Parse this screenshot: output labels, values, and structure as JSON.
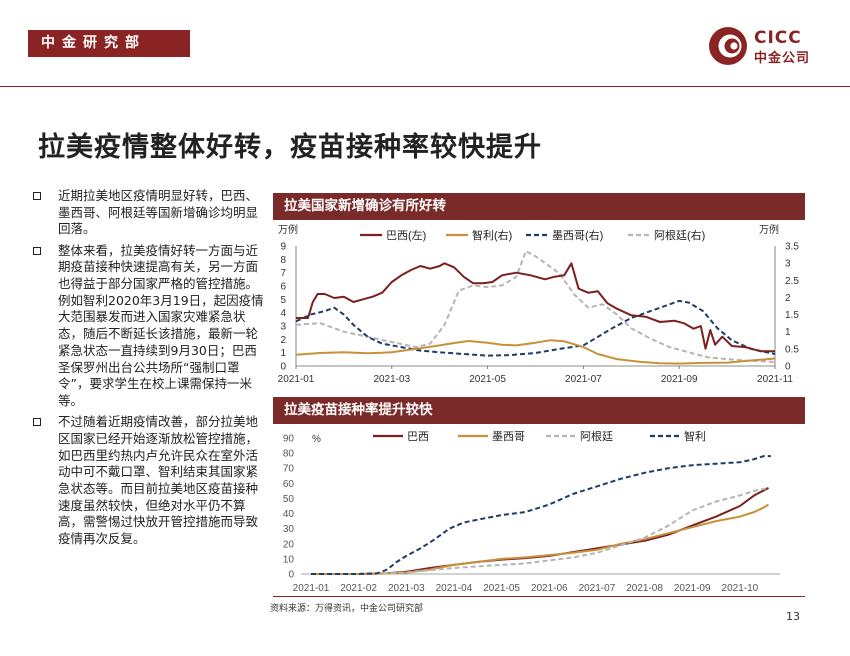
{
  "header": {
    "dept": "中金研究部",
    "logo_en": "CICC",
    "logo_cn": "中金公司"
  },
  "title": "拉美疫情整体好转，疫苗接种率较快提升",
  "bullets": [
    "近期拉美地区疫情明显好转，巴西、墨西哥、阿根廷等国新增确诊均明显回落。",
    "整体来看，拉美疫情好转一方面与近期疫苗接种快速提高有关，另一方面也得益于部分国家严格的管控措施。例如智利2020年3月19日，起因疫情大范围暴发而进入国家灾难紧急状态，随后不断延长该措施，最新一轮紧急状态一直持续到9月30日；巴西圣保罗州出台公共场所“强制口罩令”，要求学生在校上课需保持一米等。",
    "不过随着近期疫情改善，部分拉美地区国家已经开始逐渐放松管控措施，如巴西里约热内卢允许民众在室外活动中可不戴口罩、智利结束其国家紧急状态等。而目前拉美地区疫苗接种速度虽然较快，但绝对水平仍不算高，需警惕过快放开管控措施而导致疫情再次反复。"
  ],
  "chart1_header": "拉美国家新增确诊有所好转",
  "chart2_header": "拉美疫苗接种率提升较快",
  "source": "资料来源：万得资讯，中金公司研究部",
  "page_number": "13",
  "colors": {
    "brand": "#8a2424",
    "header_bg": "#7b2a2a",
    "brazil": "#7b1f1f",
    "chile_mexico_gold": "#c8903a",
    "navy": "#1f3c68",
    "gray": "#b5b5b5"
  },
  "chart_data": [
    {
      "type": "line",
      "title": "拉美国家新增确诊有所好转",
      "ylabel_left": "万例",
      "ylabel_right": "万例",
      "ylim_left": [
        0,
        9
      ],
      "ylim_right": [
        0,
        3.5
      ],
      "yticks_left": [
        "0",
        "1",
        "2",
        "3",
        "4",
        "5",
        "6",
        "7",
        "8",
        "9"
      ],
      "yticks_right": [
        "0",
        "0.5",
        "1",
        "1.5",
        "2",
        "2.5",
        "3",
        "3.5"
      ],
      "x_ticks": [
        "2021-01",
        "2021-03",
        "2021-05",
        "2021-07",
        "2021-09",
        "2021-11"
      ],
      "x_range_months": [
        0,
        10
      ],
      "series": [
        {
          "name": "巴西(左)",
          "axis": "left",
          "style": "solid",
          "color": "#7b1f1f",
          "points": [
            [
              0,
              3.6
            ],
            [
              0.25,
              3.6
            ],
            [
              0.35,
              4.8
            ],
            [
              0.45,
              5.4
            ],
            [
              0.6,
              5.4
            ],
            [
              0.8,
              5.1
            ],
            [
              1.0,
              5.2
            ],
            [
              1.2,
              4.8
            ],
            [
              1.4,
              5.0
            ],
            [
              1.6,
              5.2
            ],
            [
              1.8,
              5.5
            ],
            [
              2.0,
              6.3
            ],
            [
              2.2,
              6.8
            ],
            [
              2.4,
              7.2
            ],
            [
              2.6,
              7.5
            ],
            [
              2.8,
              7.3
            ],
            [
              3.0,
              7.5
            ],
            [
              3.1,
              7.7
            ],
            [
              3.3,
              7.4
            ],
            [
              3.5,
              6.7
            ],
            [
              3.7,
              6.2
            ],
            [
              3.9,
              6.2
            ],
            [
              4.1,
              6.3
            ],
            [
              4.3,
              6.8
            ],
            [
              4.6,
              7.0
            ],
            [
              4.9,
              6.8
            ],
            [
              5.2,
              6.5
            ],
            [
              5.4,
              6.7
            ],
            [
              5.6,
              6.8
            ],
            [
              5.75,
              7.7
            ],
            [
              5.9,
              5.8
            ],
            [
              6.1,
              5.5
            ],
            [
              6.3,
              5.6
            ],
            [
              6.5,
              4.7
            ],
            [
              6.7,
              4.3
            ],
            [
              7.0,
              3.8
            ],
            [
              7.3,
              3.7
            ],
            [
              7.6,
              3.3
            ],
            [
              7.9,
              3.4
            ],
            [
              8.1,
              3.2
            ],
            [
              8.3,
              2.8
            ],
            [
              8.45,
              3.0
            ],
            [
              8.55,
              1.3
            ],
            [
              8.65,
              2.7
            ],
            [
              8.75,
              1.6
            ],
            [
              8.9,
              2.2
            ],
            [
              9.1,
              1.5
            ],
            [
              9.4,
              1.4
            ],
            [
              9.7,
              1.1
            ],
            [
              10,
              1.1
            ]
          ]
        },
        {
          "name": "智利(右)",
          "axis": "right",
          "style": "solid",
          "color": "#c8903a",
          "points": [
            [
              0,
              0.33
            ],
            [
              0.5,
              0.38
            ],
            [
              1.0,
              0.4
            ],
            [
              1.5,
              0.37
            ],
            [
              2.0,
              0.4
            ],
            [
              2.5,
              0.5
            ],
            [
              3.0,
              0.6
            ],
            [
              3.3,
              0.67
            ],
            [
              3.6,
              0.73
            ],
            [
              4.0,
              0.68
            ],
            [
              4.3,
              0.62
            ],
            [
              4.6,
              0.6
            ],
            [
              5.0,
              0.68
            ],
            [
              5.3,
              0.75
            ],
            [
              5.6,
              0.72
            ],
            [
              6.0,
              0.55
            ],
            [
              6.3,
              0.35
            ],
            [
              6.7,
              0.2
            ],
            [
              7.2,
              0.12
            ],
            [
              7.6,
              0.08
            ],
            [
              8.0,
              0.07
            ],
            [
              8.5,
              0.09
            ],
            [
              9.0,
              0.1
            ],
            [
              9.5,
              0.16
            ],
            [
              10,
              0.22
            ]
          ]
        },
        {
          "name": "墨西哥(右)",
          "axis": "right",
          "style": "dashed",
          "color": "#1f3c68",
          "points": [
            [
              0,
              1.3
            ],
            [
              0.3,
              1.5
            ],
            [
              0.6,
              1.6
            ],
            [
              0.8,
              1.7
            ],
            [
              1.0,
              1.5
            ],
            [
              1.2,
              1.2
            ],
            [
              1.5,
              0.85
            ],
            [
              1.8,
              0.65
            ],
            [
              2.2,
              0.55
            ],
            [
              2.6,
              0.45
            ],
            [
              3.0,
              0.4
            ],
            [
              3.5,
              0.35
            ],
            [
              4.0,
              0.3
            ],
            [
              4.5,
              0.32
            ],
            [
              5.0,
              0.38
            ],
            [
              5.5,
              0.5
            ],
            [
              6.0,
              0.6
            ],
            [
              6.3,
              0.85
            ],
            [
              6.6,
              1.1
            ],
            [
              7.0,
              1.4
            ],
            [
              7.4,
              1.6
            ],
            [
              7.8,
              1.8
            ],
            [
              8.0,
              1.9
            ],
            [
              8.2,
              1.85
            ],
            [
              8.5,
              1.6
            ],
            [
              8.8,
              1.1
            ],
            [
              9.1,
              0.75
            ],
            [
              9.5,
              0.5
            ],
            [
              10,
              0.35
            ]
          ]
        },
        {
          "name": "阿根廷(右)",
          "axis": "right",
          "style": "dashed",
          "color": "#b5b5b5",
          "points": [
            [
              0,
              1.2
            ],
            [
              0.5,
              1.25
            ],
            [
              1.0,
              1.0
            ],
            [
              1.5,
              0.85
            ],
            [
              2.0,
              0.7
            ],
            [
              2.5,
              0.55
            ],
            [
              2.8,
              0.65
            ],
            [
              3.1,
              1.2
            ],
            [
              3.4,
              2.2
            ],
            [
              3.7,
              2.35
            ],
            [
              4.0,
              2.3
            ],
            [
              4.3,
              2.35
            ],
            [
              4.6,
              2.6
            ],
            [
              4.8,
              3.35
            ],
            [
              5.0,
              3.2
            ],
            [
              5.2,
              3.0
            ],
            [
              5.5,
              2.7
            ],
            [
              5.8,
              2.1
            ],
            [
              6.1,
              1.7
            ],
            [
              6.4,
              1.8
            ],
            [
              6.7,
              1.5
            ],
            [
              7.0,
              1.1
            ],
            [
              7.4,
              0.8
            ],
            [
              7.8,
              0.55
            ],
            [
              8.2,
              0.4
            ],
            [
              8.6,
              0.25
            ],
            [
              9.0,
              0.2
            ],
            [
              9.5,
              0.15
            ],
            [
              10,
              0.12
            ]
          ]
        }
      ]
    },
    {
      "type": "line",
      "title": "拉美疫苗接种率提升较快",
      "ylabel": "%",
      "ylim": [
        0,
        90
      ],
      "yticks": [
        "0",
        "10",
        "20",
        "30",
        "40",
        "50",
        "60",
        "70",
        "80",
        "90"
      ],
      "x_ticks": [
        "2021-01",
        "2021-02",
        "2021-03",
        "2021-04",
        "2021-05",
        "2021-06",
        "2021-07",
        "2021-08",
        "2021-09",
        "2021-10"
      ],
      "x_range_months": [
        0,
        9.65
      ],
      "series": [
        {
          "name": "巴西",
          "style": "solid",
          "color": "#7b1f1f",
          "points": [
            [
              0,
              0
            ],
            [
              1.0,
              0
            ],
            [
              1.5,
              0.3
            ],
            [
              2.0,
              1.5
            ],
            [
              2.5,
              4
            ],
            [
              3.0,
              6
            ],
            [
              3.5,
              8
            ],
            [
              4.0,
              9.5
            ],
            [
              4.5,
              10.5
            ],
            [
              5.0,
              12
            ],
            [
              5.5,
              14.5
            ],
            [
              6.0,
              17
            ],
            [
              6.5,
              19.5
            ],
            [
              7.0,
              22
            ],
            [
              7.5,
              26
            ],
            [
              8.0,
              32
            ],
            [
              8.5,
              38
            ],
            [
              9.0,
              45
            ],
            [
              9.3,
              52
            ],
            [
              9.6,
              57
            ]
          ]
        },
        {
          "name": "墨西哥",
          "style": "solid",
          "color": "#c8903a",
          "points": [
            [
              0,
              0
            ],
            [
              1.0,
              0
            ],
            [
              1.5,
              0.3
            ],
            [
              2.0,
              1
            ],
            [
              2.5,
              3
            ],
            [
              3.0,
              6
            ],
            [
              3.5,
              8
            ],
            [
              4.0,
              10
            ],
            [
              4.5,
              11
            ],
            [
              5.0,
              12.5
            ],
            [
              5.5,
              14
            ],
            [
              6.0,
              16
            ],
            [
              6.5,
              20
            ],
            [
              7.0,
              23
            ],
            [
              7.5,
              27
            ],
            [
              8.0,
              31
            ],
            [
              8.5,
              35
            ],
            [
              9.0,
              38
            ],
            [
              9.3,
              41
            ],
            [
              9.5,
              44
            ],
            [
              9.6,
              46
            ]
          ]
        },
        {
          "name": "阿根廷",
          "style": "dashed",
          "color": "#b5b5b5",
          "points": [
            [
              0,
              0
            ],
            [
              1.0,
              0
            ],
            [
              1.5,
              0.5
            ],
            [
              2.0,
              1
            ],
            [
              2.5,
              2.5
            ],
            [
              3.0,
              4
            ],
            [
              3.5,
              5
            ],
            [
              4.0,
              6
            ],
            [
              4.5,
              7
            ],
            [
              5.0,
              9
            ],
            [
              5.5,
              11
            ],
            [
              6.0,
              14
            ],
            [
              6.5,
              19
            ],
            [
              7.0,
              24
            ],
            [
              7.5,
              32
            ],
            [
              8.0,
              42
            ],
            [
              8.5,
              48
            ],
            [
              9.0,
              52
            ],
            [
              9.3,
              55
            ],
            [
              9.6,
              57
            ]
          ]
        },
        {
          "name": "智利",
          "style": "dashed",
          "color": "#1f3c68",
          "points": [
            [
              0,
              0
            ],
            [
              1.0,
              0
            ],
            [
              1.4,
              0.5
            ],
            [
              1.6,
              3
            ],
            [
              1.8,
              8
            ],
            [
              2.0,
              12
            ],
            [
              2.3,
              17
            ],
            [
              2.6,
              23
            ],
            [
              2.9,
              30
            ],
            [
              3.2,
              34
            ],
            [
              3.5,
              36
            ],
            [
              4.0,
              39
            ],
            [
              4.5,
              41
            ],
            [
              5.0,
              46
            ],
            [
              5.5,
              53
            ],
            [
              6.0,
              58
            ],
            [
              6.5,
              63
            ],
            [
              7.0,
              67
            ],
            [
              7.5,
              70
            ],
            [
              8.0,
              72
            ],
            [
              8.5,
              73
            ],
            [
              9.0,
              74
            ],
            [
              9.3,
              76
            ],
            [
              9.5,
              78
            ],
            [
              9.65,
              78
            ]
          ]
        }
      ]
    }
  ]
}
